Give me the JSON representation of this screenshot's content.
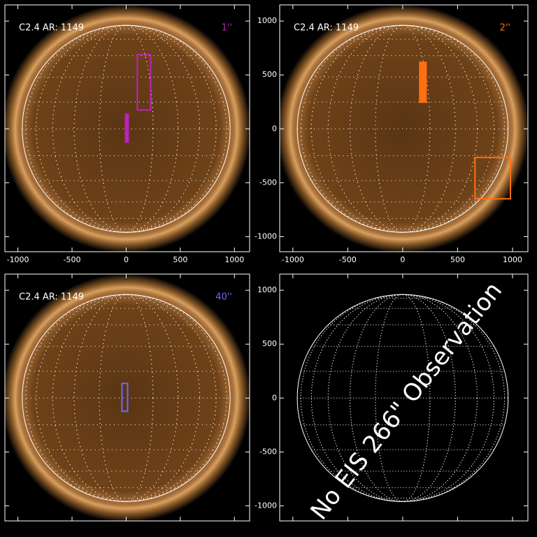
{
  "chart_data": [
    {
      "type": "image",
      "title": "C2.4 AR: 1149",
      "label": "1''",
      "label_color": "#c020c0",
      "xlim": [
        -1120,
        1140
      ],
      "ylim": [
        -1140,
        1150
      ],
      "xticks": [
        -1000,
        -500,
        0,
        500,
        1000
      ],
      "yticks": [
        -1000,
        -500,
        0,
        500,
        1000
      ],
      "show_xticklabels": true,
      "show_yticklabels": false,
      "disk_radius": 960,
      "boxes": [
        {
          "x0": 103,
          "x1": 226,
          "y0": 175,
          "y1": 688,
          "color": "#c020c0",
          "filled": false
        },
        {
          "x0": -6,
          "x1": 19,
          "y0": -123,
          "y1": 136,
          "color": "#c020c0",
          "filled": true
        }
      ]
    },
    {
      "type": "image",
      "title": "C2.4 AR: 1149",
      "label": "2''",
      "label_color": "#ff7010",
      "xlim": [
        -1120,
        1140
      ],
      "ylim": [
        -1140,
        1150
      ],
      "xticks": [
        -1000,
        -500,
        0,
        500,
        1000
      ],
      "yticks": [
        -1000,
        -500,
        0,
        500,
        1000
      ],
      "show_xticklabels": true,
      "show_yticklabels": true,
      "disk_radius": 960,
      "boxes": [
        {
          "x0": 155,
          "x1": 213,
          "y0": 247,
          "y1": 617,
          "color": "#ff7010",
          "filled": true
        },
        {
          "x0": 658,
          "x1": 981,
          "y0": -649,
          "y1": -266,
          "color": "#ff7010",
          "filled": false
        }
      ]
    },
    {
      "type": "image",
      "title": "C2.4 AR: 1149",
      "label": "40''",
      "label_color": "#6a6aff",
      "xlim": [
        -1120,
        1140
      ],
      "ylim": [
        -1140,
        1150
      ],
      "xticks": [
        -1000,
        -500,
        0,
        500,
        1000
      ],
      "yticks": [
        -1000,
        -500,
        0,
        500,
        1000
      ],
      "show_xticklabels": false,
      "show_yticklabels": false,
      "disk_radius": 960,
      "boxes": [
        {
          "x0": -39,
          "x1": 13,
          "y0": -123,
          "y1": 136,
          "color": "#6a6aff",
          "filled": false
        }
      ]
    },
    {
      "type": "grid",
      "annotation": "No EIS 266\" Observation",
      "xlim": [
        -1120,
        1140
      ],
      "ylim": [
        -1140,
        1150
      ],
      "xticks": [
        -1000,
        -500,
        0,
        500,
        1000
      ],
      "yticks": [
        -1000,
        -500,
        0,
        500,
        1000
      ],
      "show_xticklabels": false,
      "show_yticklabels": true,
      "disk_radius": 960,
      "boxes": []
    }
  ]
}
